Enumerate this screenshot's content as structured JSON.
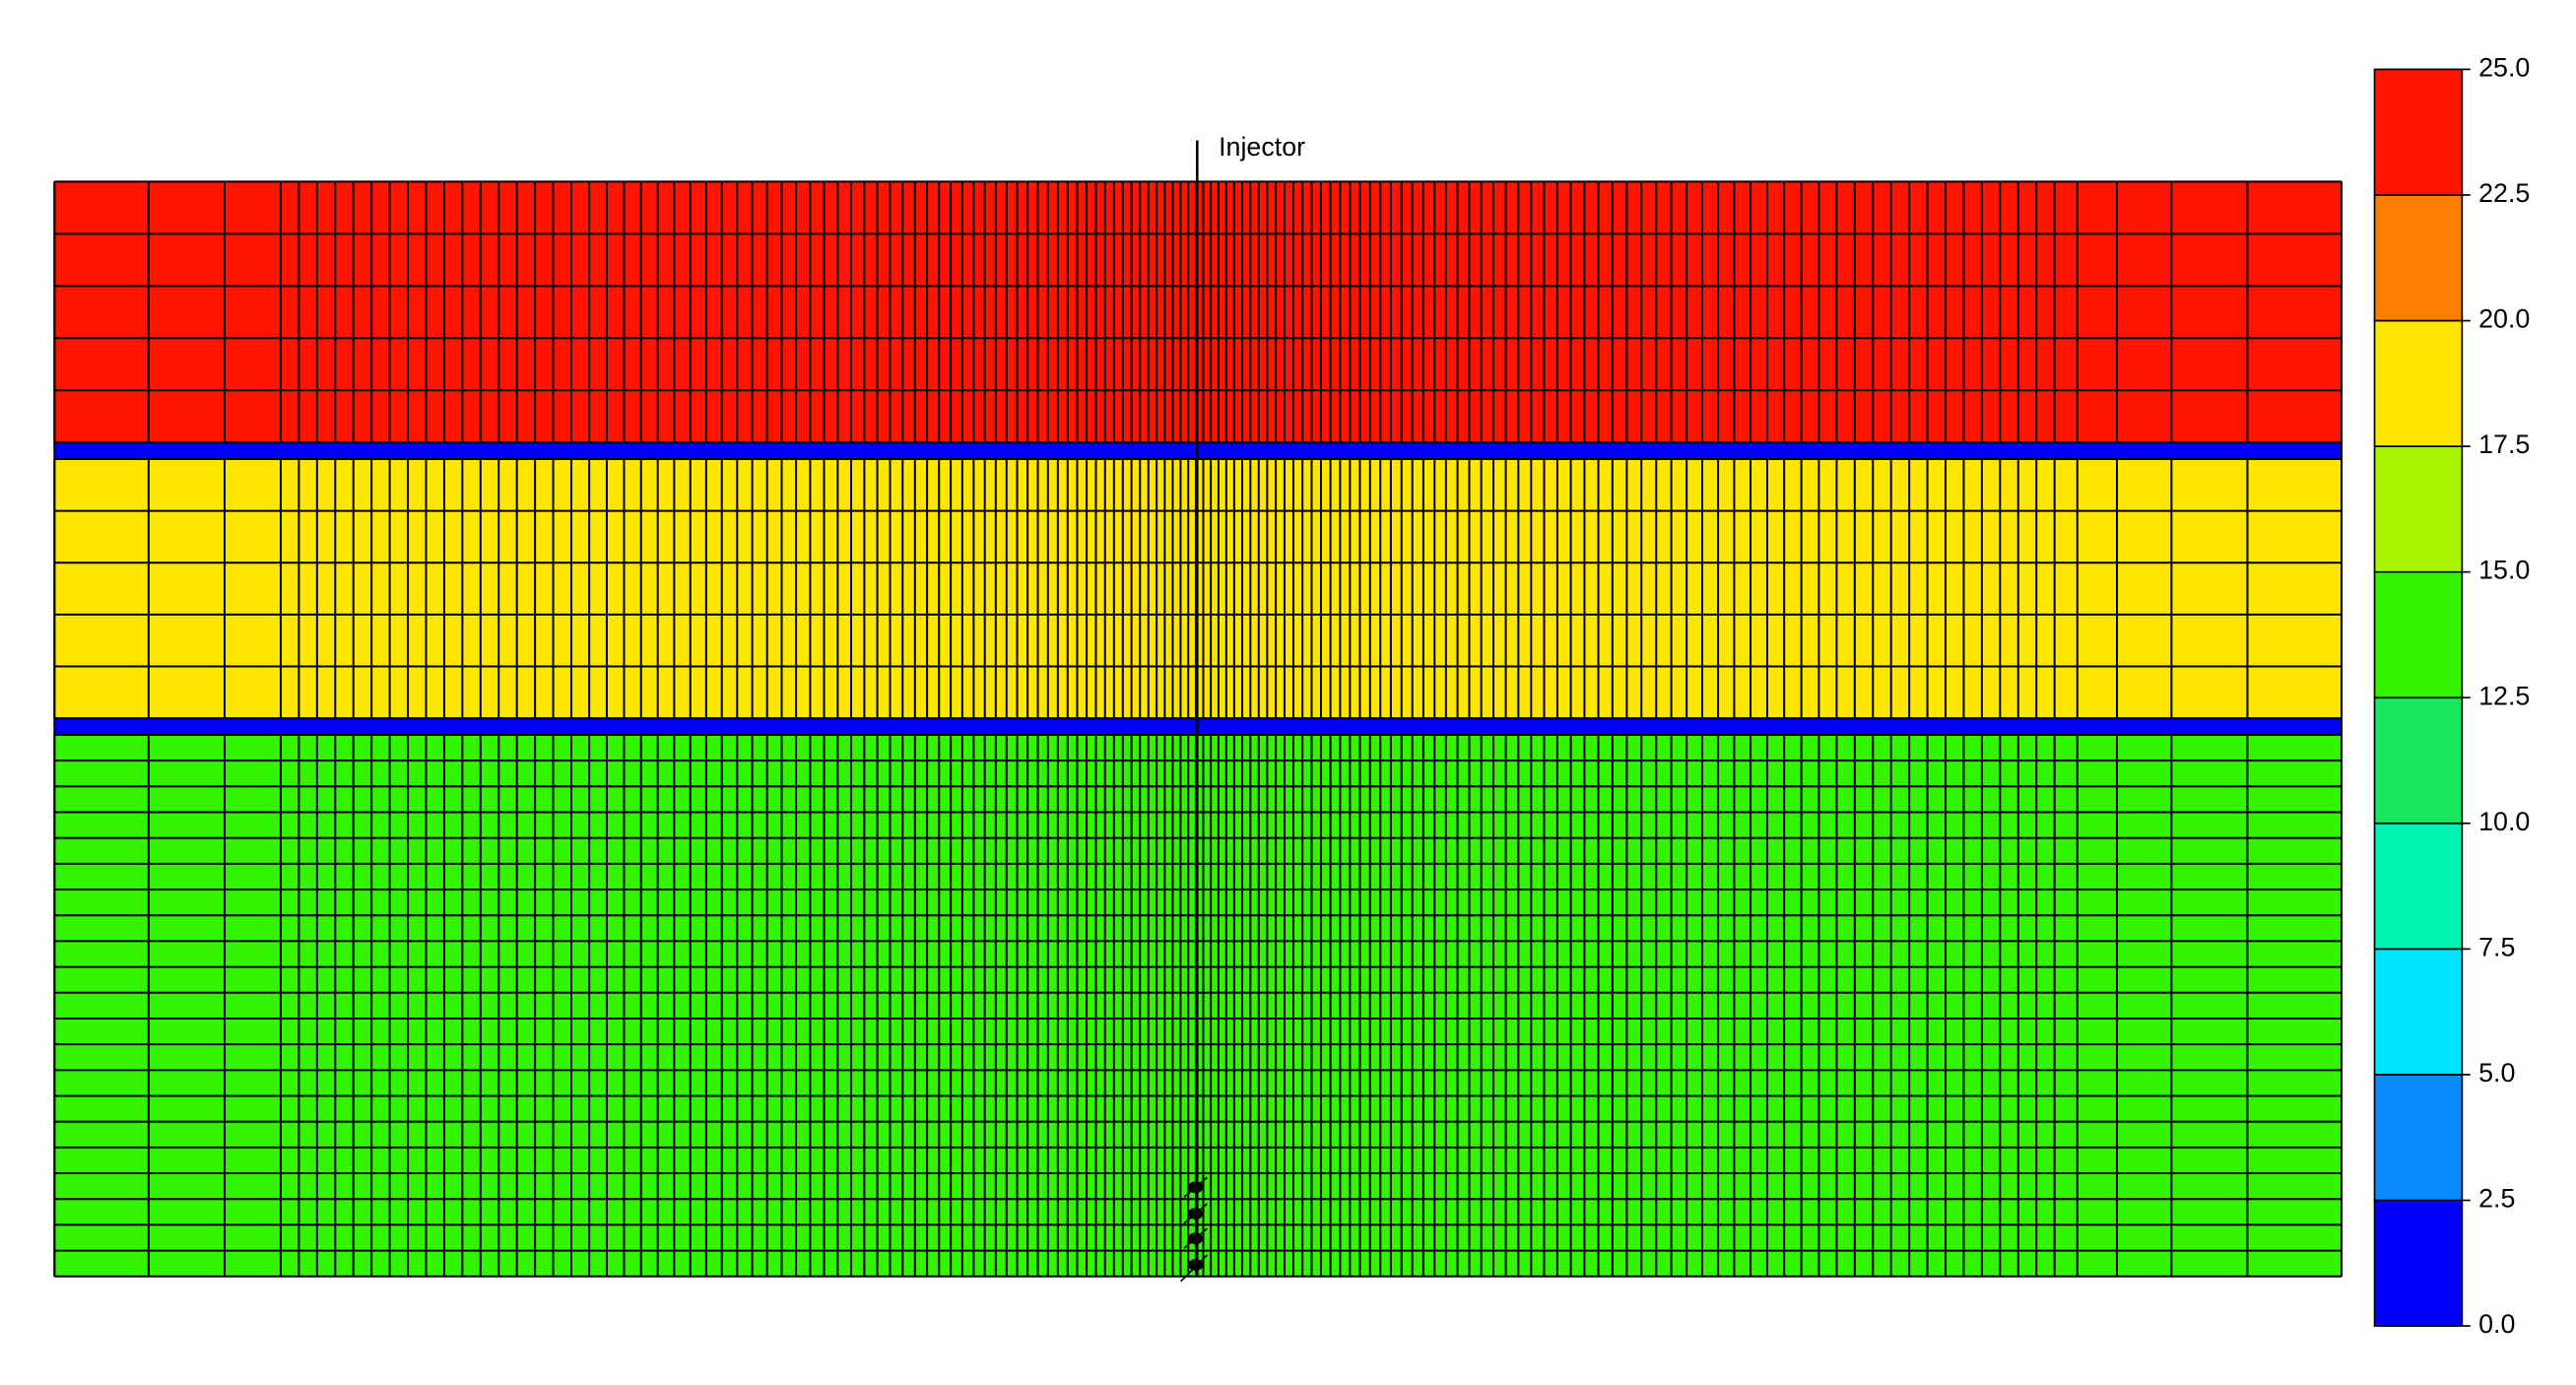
{
  "well": {
    "name": "Injector"
  },
  "colorbar": {
    "ticks": [
      {
        "value": 0,
        "label": "0.0"
      },
      {
        "value": 2.5,
        "label": "2.5"
      },
      {
        "value": 5,
        "label": "5.0"
      },
      {
        "value": 7.5,
        "label": "7.5"
      },
      {
        "value": 10,
        "label": "10.0"
      },
      {
        "value": 12.5,
        "label": "12.5"
      },
      {
        "value": 15,
        "label": "15.0"
      },
      {
        "value": 17.5,
        "label": "17.5"
      },
      {
        "value": 20,
        "label": "20.0"
      },
      {
        "value": 22.5,
        "label": "22.5"
      },
      {
        "value": 25,
        "label": "25.0"
      }
    ],
    "colors": [
      "#0000ff",
      "#0a8cff",
      "#00e5ff",
      "#00f5b4",
      "#18e860",
      "#33f500",
      "#a8f500",
      "#ffe600",
      "#ff8000",
      "#ff1400"
    ]
  },
  "layers": [
    {
      "value": 23.75
    },
    {
      "value": 1.25
    },
    {
      "value": 18.75
    },
    {
      "value": 1.25
    },
    {
      "value": 13.75
    }
  ]
}
